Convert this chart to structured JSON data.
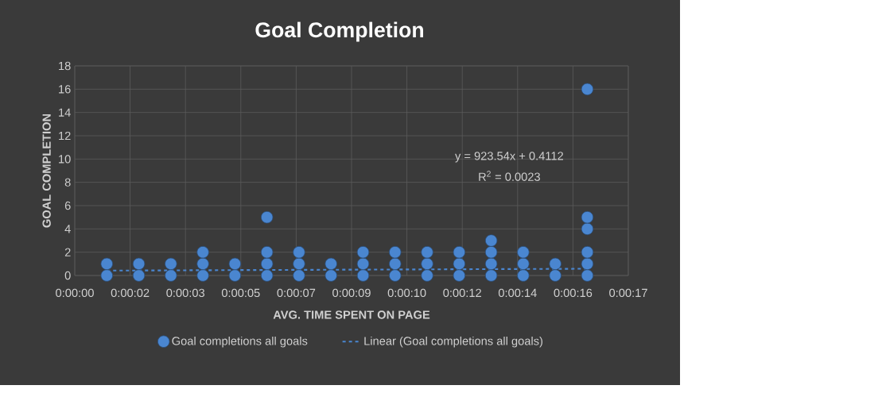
{
  "chart_data": {
    "type": "scatter",
    "title": "Goal Completion",
    "xlabel": "AVG. TIME SPENT ON PAGE",
    "ylabel": "GOAL COMPLETION",
    "xlim": [
      0,
      17.28
    ],
    "ylim": [
      0,
      18
    ],
    "xticks": [
      {
        "value": 0,
        "label": "0:00:00"
      },
      {
        "value": 1.728,
        "label": "0:00:02"
      },
      {
        "value": 3.456,
        "label": "0:00:03"
      },
      {
        "value": 5.184,
        "label": "0:00:05"
      },
      {
        "value": 6.912,
        "label": "0:00:07"
      },
      {
        "value": 8.64,
        "label": "0:00:09"
      },
      {
        "value": 10.368,
        "label": "0:00:10"
      },
      {
        "value": 12.096,
        "label": "0:00:12"
      },
      {
        "value": 13.824,
        "label": "0:00:14"
      },
      {
        "value": 15.552,
        "label": "0:00:16"
      },
      {
        "value": 17.28,
        "label": "0:00:17"
      }
    ],
    "yticks": [
      0,
      2,
      4,
      6,
      8,
      10,
      12,
      14,
      16,
      18
    ],
    "grid": true,
    "legend": "bottom",
    "annotations": [
      "y = 923.54x + 0.4112",
      "R$^{2}$ = 0.0023"
    ],
    "series": [
      {
        "name": "Goal completions all goals",
        "marker": "circle",
        "color": "#4a86d0",
        "x": [
          1,
          1,
          2,
          2,
          3,
          3,
          4,
          4,
          4,
          5,
          5,
          6,
          6,
          6,
          6,
          7,
          7,
          7,
          8,
          8,
          9,
          9,
          9,
          10,
          10,
          10,
          11,
          11,
          11,
          12,
          12,
          12,
          13,
          13,
          13,
          13,
          14,
          14,
          14,
          15,
          15,
          16,
          16,
          16,
          16,
          16,
          16
        ],
        "values": [
          0,
          1,
          0,
          1,
          0,
          1,
          0,
          1,
          2,
          0,
          1,
          0,
          1,
          2,
          5,
          0,
          1,
          2,
          0,
          1,
          0,
          1,
          2,
          0,
          1,
          2,
          0,
          1,
          2,
          0,
          1,
          2,
          0,
          1,
          2,
          3,
          0,
          1,
          2,
          0,
          1,
          0,
          1,
          2,
          4,
          5,
          16
        ]
      },
      {
        "name": "Linear (Goal completions all goals)",
        "type": "line",
        "line_style": "dashed",
        "marker": "none",
        "color": "#4a86d0",
        "x": [
          1,
          16
        ],
        "values": [
          0.42,
          0.58
        ]
      }
    ]
  }
}
